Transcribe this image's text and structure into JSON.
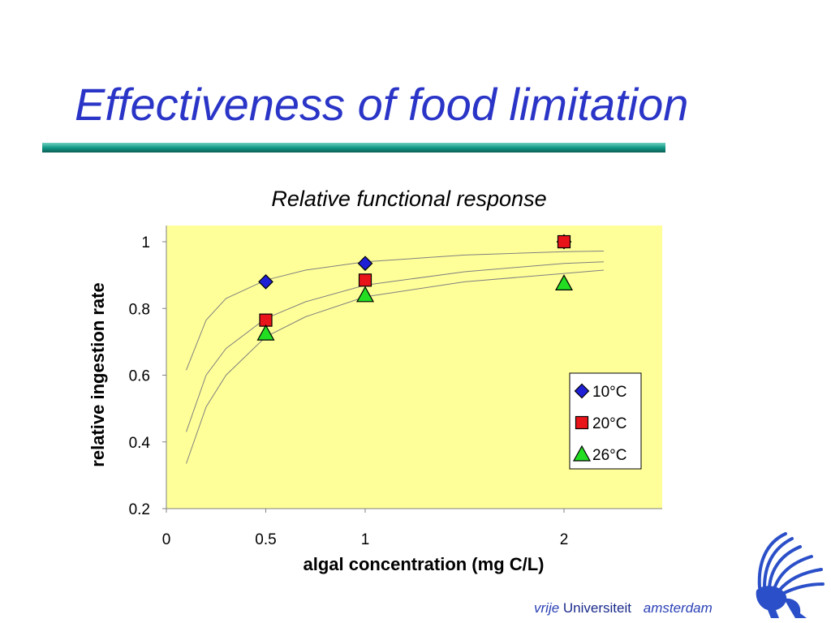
{
  "slide": {
    "title": "Effectiveness of food limitation"
  },
  "colors": {
    "title": "#2a35c7",
    "plot_background": "#ffff99",
    "series_10": "#1f1fd6",
    "series_20": "#e8141a",
    "series_26": "#22dd22"
  },
  "chart_data": {
    "type": "scatter",
    "title": "Relative functional response",
    "xlabel": "algal concentration (mg C/L)",
    "ylabel": "relative ingestion rate",
    "xlim": [
      0,
      2.5
    ],
    "ylim": [
      0.2,
      1.05
    ],
    "xticks": [
      "0",
      "0.5",
      "1",
      "2"
    ],
    "xtick_values": [
      0,
      0.5,
      1,
      2
    ],
    "yticks": [
      "0.2",
      "0.4",
      "0.6",
      "0.8",
      "1"
    ],
    "ytick_values": [
      0.2,
      0.4,
      0.6,
      0.8,
      1.0
    ],
    "grid": false,
    "legend_position": "bottom-right",
    "series": [
      {
        "name": "10°C",
        "marker": "diamond",
        "color": "#1f1fd6",
        "x": [
          0.5,
          1,
          2
        ],
        "y": [
          0.88,
          0.935,
          1.0
        ]
      },
      {
        "name": "20°C",
        "marker": "square",
        "color": "#e8141a",
        "x": [
          0.5,
          1,
          2
        ],
        "y": [
          0.765,
          0.885,
          1.0
        ]
      },
      {
        "name": "26°C",
        "marker": "triangle",
        "color": "#22dd22",
        "x": [
          0.5,
          1,
          2
        ],
        "y": [
          0.725,
          0.84,
          0.875
        ]
      }
    ],
    "fitted_curves": [
      {
        "x": [
          0.1,
          0.2,
          0.3,
          0.5,
          0.7,
          1.0,
          1.5,
          2.0,
          2.2
        ],
        "y": [
          0.615,
          0.765,
          0.83,
          0.885,
          0.915,
          0.94,
          0.96,
          0.97,
          0.972
        ]
      },
      {
        "x": [
          0.1,
          0.2,
          0.3,
          0.5,
          0.7,
          1.0,
          1.5,
          2.0,
          2.2
        ],
        "y": [
          0.43,
          0.6,
          0.68,
          0.77,
          0.82,
          0.87,
          0.91,
          0.935,
          0.94
        ]
      },
      {
        "x": [
          0.1,
          0.2,
          0.3,
          0.5,
          0.7,
          1.0,
          1.5,
          2.0,
          2.2
        ],
        "y": [
          0.335,
          0.505,
          0.6,
          0.715,
          0.775,
          0.835,
          0.88,
          0.905,
          0.915
        ]
      }
    ]
  },
  "logo": {
    "word1": "vrije",
    "word2": "Universiteit",
    "word3": "amsterdam"
  }
}
